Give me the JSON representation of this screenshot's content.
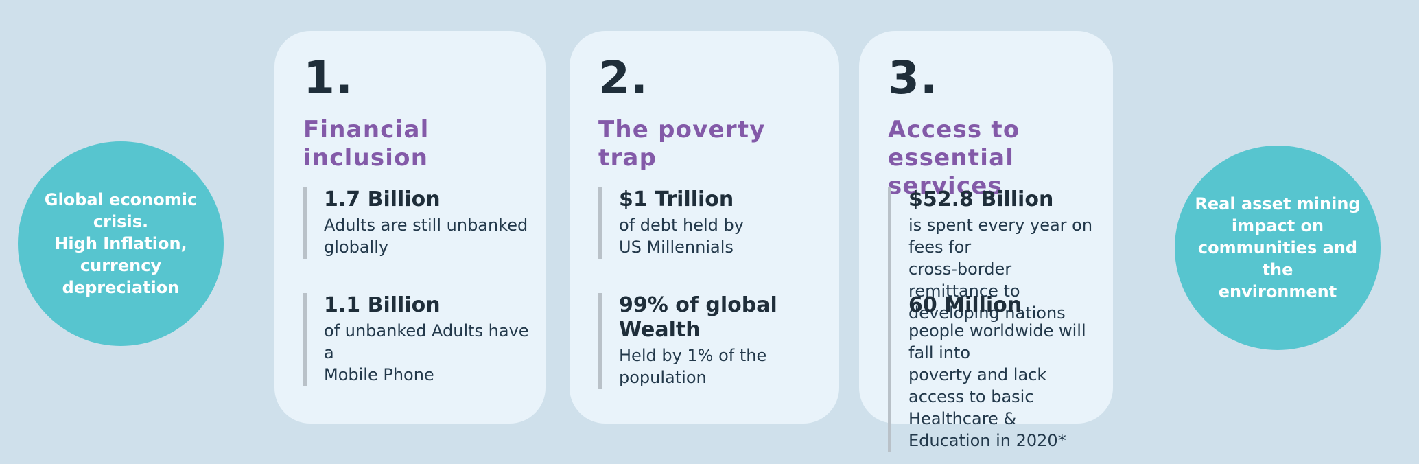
{
  "colors": {
    "background": "#cfe0eb",
    "card_background": "#e9f3fa",
    "circle_teal": "#57c5cf",
    "title_purple": "#835aa8",
    "text_dark": "#1f2e3a",
    "stat_bar_gray": "#b9c1c8",
    "circle_text_white": "#ffffff"
  },
  "left_circle": {
    "text": "Global economic\ncrisis.\nHigh Inflation,\ncurrency\ndepreciation"
  },
  "right_circle": {
    "text": "Real asset  mining\nimpact on\ncommunities and the\nenvironment"
  },
  "cards": [
    {
      "number": "1.",
      "title": "Financial inclusion",
      "stats": [
        {
          "value": "1.7 Billion",
          "desc": "Adults are still unbanked\nglobally"
        },
        {
          "value": "1.1 Billion",
          "desc": "of unbanked Adults have a\nMobile Phone"
        }
      ]
    },
    {
      "number": "2.",
      "title": "The poverty trap",
      "stats": [
        {
          "value": "$1 Trillion",
          "desc": "of debt held by\nUS Millennials"
        },
        {
          "value": "99% of global Wealth",
          "desc": "Held by 1% of the\npopulation"
        }
      ]
    },
    {
      "number": "3.",
      "title": "Access to essential\nservices",
      "stats": [
        {
          "value": "$52.8 Billion",
          "desc": "is spent every year on fees for\ncross-border remittance to\ndeveloping nations"
        },
        {
          "value": "60 Million",
          "desc": "people worldwide will fall into\npoverty and lack access to basic\nHealthcare & Education in 2020*"
        }
      ]
    }
  ]
}
